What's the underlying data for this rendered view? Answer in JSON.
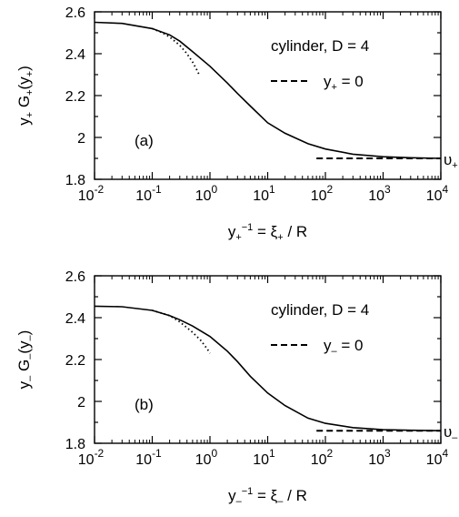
{
  "chart_data": [
    {
      "type": "line",
      "panel_label": "(a)",
      "legend_title": "cylinder, D = 4",
      "legend_entry": "y+ = 0",
      "xscale": "log",
      "xlim": [
        0.01,
        10000
      ],
      "ylim": [
        1.8,
        2.6
      ],
      "xticks": [
        "10^-2",
        "10^-1",
        "10^0",
        "10^1",
        "10^2",
        "10^3",
        "10^4"
      ],
      "yticks": [
        "1.8",
        "2",
        "2.2",
        "2.4",
        "2.6"
      ],
      "ylabel": "y+ G+(y+)",
      "xlabel": "y+^-1 = ξ+ / R",
      "right_label": "υ+",
      "series": [
        {
          "style": "solid",
          "x": [
            0.01,
            0.03,
            0.1,
            0.2,
            0.3,
            0.5,
            1,
            2,
            3,
            5,
            10,
            20,
            50,
            100,
            300,
            1000,
            3000,
            10000
          ],
          "y": [
            2.55,
            2.545,
            2.52,
            2.49,
            2.46,
            2.41,
            2.34,
            2.26,
            2.21,
            2.15,
            2.07,
            2.02,
            1.97,
            1.945,
            1.92,
            1.908,
            1.903,
            1.9
          ]
        },
        {
          "style": "dotted",
          "x": [
            0.1,
            0.15,
            0.2,
            0.3,
            0.4,
            0.5,
            0.6,
            0.65
          ],
          "y": [
            2.52,
            2.5,
            2.48,
            2.44,
            2.4,
            2.36,
            2.32,
            2.3
          ]
        },
        {
          "name": "y+ = 0",
          "style": "dashed",
          "x": [
            70,
            10000
          ],
          "y": [
            1.9,
            1.9
          ]
        }
      ]
    },
    {
      "type": "line",
      "panel_label": "(b)",
      "legend_title": "cylinder, D = 4",
      "legend_entry": "y_ = 0",
      "xscale": "log",
      "xlim": [
        0.01,
        10000
      ],
      "ylim": [
        1.8,
        2.6
      ],
      "xticks": [
        "10^-2",
        "10^-1",
        "10^0",
        "10^1",
        "10^2",
        "10^3",
        "10^4"
      ],
      "yticks": [
        "1.8",
        "2",
        "2.2",
        "2.4",
        "2.6"
      ],
      "ylabel": "y_ G_(y_)",
      "xlabel": "y_^-1 = ξ_ / R",
      "right_label": "υ_",
      "series": [
        {
          "style": "solid",
          "x": [
            0.01,
            0.03,
            0.1,
            0.2,
            0.3,
            0.5,
            1,
            2,
            3,
            5,
            10,
            20,
            50,
            100,
            300,
            1000,
            3000,
            10000
          ],
          "y": [
            2.455,
            2.452,
            2.435,
            2.41,
            2.39,
            2.36,
            2.31,
            2.24,
            2.19,
            2.12,
            2.04,
            1.98,
            1.92,
            1.895,
            1.875,
            1.865,
            1.862,
            1.86
          ]
        },
        {
          "style": "dotted",
          "x": [
            0.1,
            0.2,
            0.3,
            0.5,
            0.7,
            0.9,
            1.0
          ],
          "y": [
            2.435,
            2.41,
            2.38,
            2.33,
            2.29,
            2.25,
            2.23
          ]
        },
        {
          "name": "y_ = 0",
          "style": "dashed",
          "x": [
            70,
            10000
          ],
          "y": [
            1.86,
            1.86
          ]
        }
      ]
    }
  ]
}
